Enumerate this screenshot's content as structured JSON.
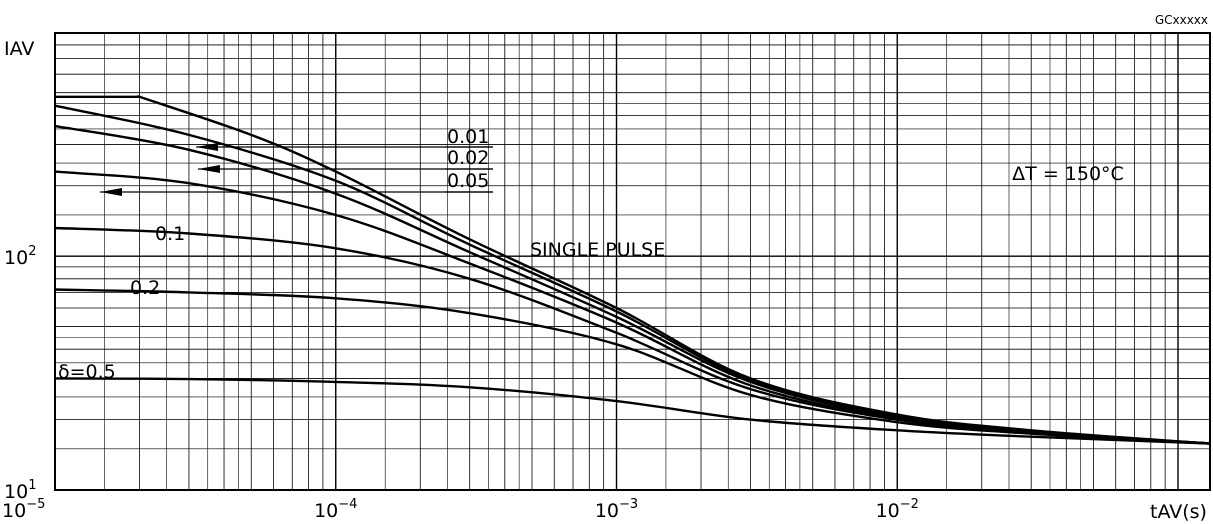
{
  "chart_data": {
    "type": "line",
    "code": "GCxxxxx",
    "ylabel": "IAV",
    "xlabel": "tAV(s)",
    "x_scale": "log",
    "y_scale": "log",
    "xlim": [
      1e-05,
      0.13
    ],
    "ylim": [
      10,
      900
    ],
    "x_ticks": [
      {
        "value": 1e-05,
        "base": "10",
        "exp": "−5"
      },
      {
        "value": 0.0001,
        "base": "10",
        "exp": "−4"
      },
      {
        "value": 0.001,
        "base": "10",
        "exp": "−3"
      },
      {
        "value": 0.01,
        "base": "10",
        "exp": "−2"
      }
    ],
    "y_ticks": [
      {
        "value": 10,
        "base": "10",
        "exp": "1"
      },
      {
        "value": 100,
        "base": "10",
        "exp": "2"
      }
    ],
    "grid": true,
    "annotation": "ΔT = 150°C",
    "series": [
      {
        "name": "SINGLE PULSE",
        "points": [
          [
            1e-05,
            480
          ],
          [
            2e-05,
            480
          ],
          [
            5e-05,
            330
          ],
          [
            0.0001,
            230
          ],
          [
            0.0003,
            118
          ],
          [
            0.001,
            60
          ],
          [
            0.003,
            30
          ],
          [
            0.01,
            21
          ],
          [
            0.03,
            18
          ],
          [
            0.13,
            15.8
          ]
        ]
      },
      {
        "name": "0.01",
        "points": [
          [
            1e-05,
            440
          ],
          [
            3e-05,
            330
          ],
          [
            0.0001,
            210
          ],
          [
            0.0003,
            112
          ],
          [
            0.001,
            58
          ],
          [
            0.003,
            29.5
          ],
          [
            0.01,
            20.8
          ],
          [
            0.03,
            17.8
          ],
          [
            0.13,
            15.8
          ]
        ]
      },
      {
        "name": "0.02",
        "points": [
          [
            1e-05,
            360
          ],
          [
            3e-05,
            285
          ],
          [
            0.0001,
            185
          ],
          [
            0.0003,
            104
          ],
          [
            0.001,
            55
          ],
          [
            0.003,
            29
          ],
          [
            0.01,
            20.5
          ],
          [
            0.03,
            17.7
          ],
          [
            0.13,
            15.8
          ]
        ]
      },
      {
        "name": "0.05",
        "points": [
          [
            1e-05,
            230
          ],
          [
            3e-05,
            205
          ],
          [
            0.0001,
            150
          ],
          [
            0.0003,
            93
          ],
          [
            0.001,
            52
          ],
          [
            0.003,
            28
          ],
          [
            0.01,
            20.2
          ],
          [
            0.03,
            17.6
          ],
          [
            0.13,
            15.8
          ]
        ]
      },
      {
        "name": "0.1",
        "points": [
          [
            1e-05,
            132
          ],
          [
            3e-05,
            125
          ],
          [
            0.0001,
            108
          ],
          [
            0.0003,
            80
          ],
          [
            0.001,
            47
          ],
          [
            0.003,
            27
          ],
          [
            0.01,
            20
          ],
          [
            0.03,
            17.5
          ],
          [
            0.13,
            15.8
          ]
        ]
      },
      {
        "name": "0.2",
        "points": [
          [
            1e-05,
            72
          ],
          [
            3e-05,
            70
          ],
          [
            0.0001,
            66
          ],
          [
            0.0003,
            57
          ],
          [
            0.001,
            42
          ],
          [
            0.003,
            25.5
          ],
          [
            0.01,
            19.5
          ],
          [
            0.03,
            17.4
          ],
          [
            0.13,
            15.8
          ]
        ]
      },
      {
        "name": "δ=0.5",
        "points": [
          [
            1e-05,
            30
          ],
          [
            3e-05,
            29.8
          ],
          [
            0.0001,
            29
          ],
          [
            0.0003,
            27.5
          ],
          [
            0.001,
            24
          ],
          [
            0.003,
            20
          ],
          [
            0.01,
            18
          ],
          [
            0.03,
            16.9
          ],
          [
            0.13,
            15.8
          ]
        ]
      }
    ]
  }
}
